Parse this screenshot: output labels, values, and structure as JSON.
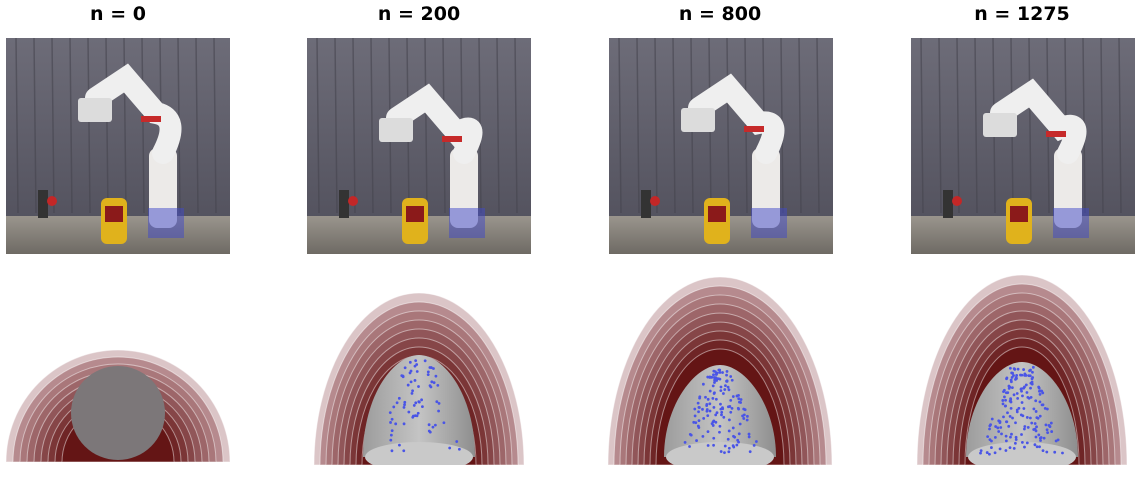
{
  "panels": [
    {
      "title": "n = 0"
    },
    {
      "title": "n = 200"
    },
    {
      "title": "n = 800"
    },
    {
      "title": "n = 1275"
    }
  ]
}
